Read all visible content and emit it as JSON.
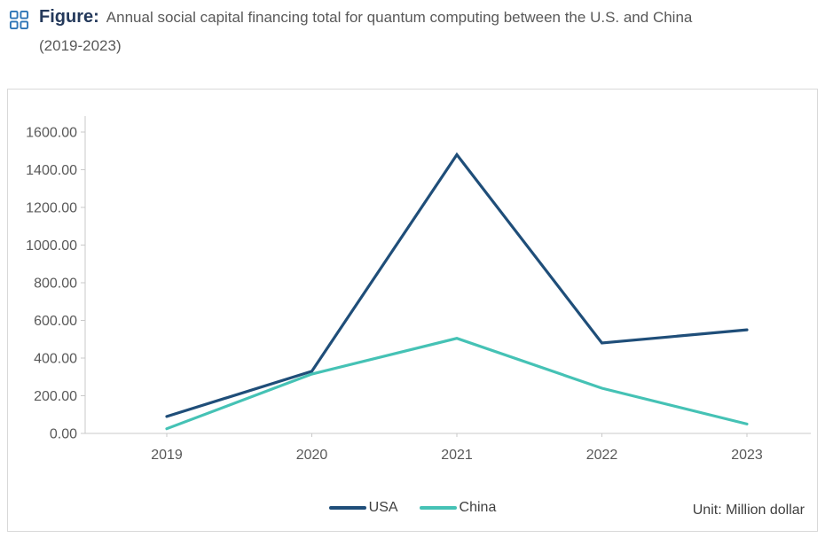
{
  "header": {
    "icon": "grid-icon",
    "label": "Figure:",
    "description": "Annual social capital financing total for quantum computing between the U.S. and China",
    "years": "(2019-2023)"
  },
  "colors": {
    "icon_blue": "#2E75B6",
    "title_navy": "#24395B",
    "text_gray": "#595959",
    "axis_gray": "#C9C9C9",
    "usa_line": "#1F4E79",
    "china_line": "#45C2B5"
  },
  "chart_data": {
    "type": "line",
    "title": "Annual social capital financing total for quantum computing between the U.S. and China (2019-2023)",
    "categories": [
      "2019",
      "2020",
      "2021",
      "2022",
      "2023"
    ],
    "series": [
      {
        "name": "USA",
        "color": "#1F4E79",
        "values": [
          90,
          330,
          1480,
          480,
          550
        ]
      },
      {
        "name": "China",
        "color": "#45C2B5",
        "values": [
          25,
          315,
          505,
          240,
          50
        ]
      }
    ],
    "ylim": [
      0,
      1600
    ],
    "ytick_step": 200,
    "ytick_decimals": 2,
    "grid": false,
    "legend_position": "bottom",
    "unit_label": "Unit: Million dollar",
    "x_axis_label": "",
    "y_axis_label": ""
  }
}
